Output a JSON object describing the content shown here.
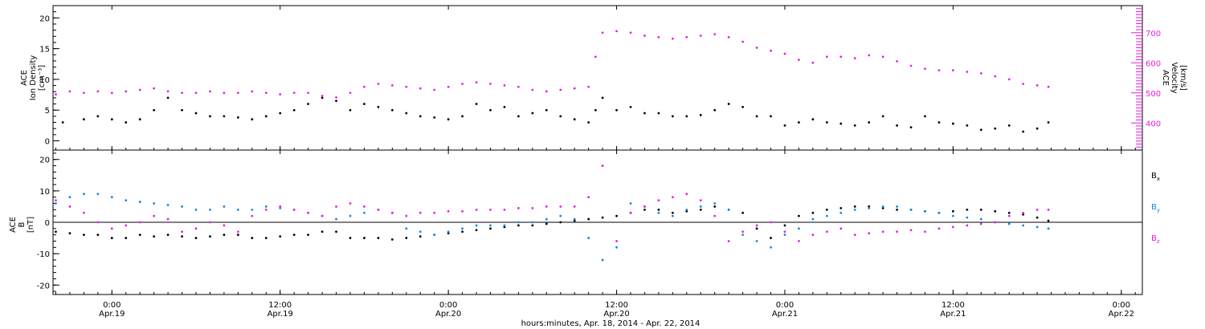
{
  "page": {
    "xlabel": "hours:minutes, Apr. 18, 2014 - Apr. 22, 2014",
    "xticks": [
      {
        "hour": 0,
        "time": "0:00",
        "date": "Apr.19"
      },
      {
        "hour": 12,
        "time": "12:00",
        "date": "Apr.19"
      },
      {
        "hour": 24,
        "time": "0:00",
        "date": "Apr.20"
      },
      {
        "hour": 36,
        "time": "12:00",
        "date": "Apr.20"
      },
      {
        "hour": 48,
        "time": "0:00",
        "date": "Apr.21"
      },
      {
        "hour": 60,
        "time": "12:00",
        "date": "Apr.21"
      },
      {
        "hour": 72,
        "time": "0:00",
        "date": "Apr.22"
      }
    ]
  },
  "top_panel": {
    "left_label_lines": [
      "ACE",
      "Ion Density",
      "[cm⁻³]"
    ],
    "right_label_lines": [
      "ACE",
      "Velocity",
      "[km/s]"
    ]
  },
  "bottom_panel": {
    "left_label_lines": [
      "ACE",
      "B",
      "[nT]"
    ],
    "legend": [
      {
        "label": "B",
        "sub": "x",
        "color": "#000000"
      },
      {
        "label": "B",
        "sub": "y",
        "color": "#1a86e0"
      },
      {
        "label": "B",
        "sub": "z",
        "color": "#e81ee0"
      }
    ]
  },
  "colors": {
    "density": "#000000",
    "velocity": "#e81ee0",
    "bx": "#000000",
    "by": "#1a86e0",
    "bz": "#e81ee0"
  },
  "chart_data": [
    {
      "type": "scatter",
      "x_unit": "hours since 0:00 Apr.19",
      "xlim": [
        -4.2,
        73.5
      ],
      "ylim": [
        -1.5,
        22
      ],
      "y2lim": [
        310,
        790
      ],
      "yticks": [
        0,
        5,
        10,
        15,
        20
      ],
      "y2ticks": [
        400,
        500,
        600,
        700
      ],
      "series": [
        {
          "key": "density",
          "axis": "left",
          "x": [
            -3.5,
            -2,
            -1,
            0,
            1,
            2,
            3,
            4,
            5,
            6,
            7,
            8,
            9,
            10,
            11,
            12,
            13,
            14,
            15,
            16,
            17,
            18,
            19,
            20,
            21,
            22,
            23,
            24,
            25,
            26,
            27,
            28,
            29,
            30,
            31,
            32,
            33,
            34,
            34.5,
            35,
            36,
            37,
            38,
            39,
            40,
            41,
            42,
            43,
            44,
            45,
            46,
            47,
            48,
            49,
            50,
            51,
            52,
            53,
            54,
            55,
            56,
            57,
            58,
            59,
            60,
            61,
            62,
            63,
            64,
            65,
            66,
            66.8
          ],
          "y": [
            3,
            3.5,
            4,
            3.5,
            3,
            3.5,
            5,
            7,
            5,
            4.5,
            4,
            4,
            3.8,
            3.5,
            4,
            4.5,
            5,
            6,
            7,
            6.5,
            5,
            6,
            5.5,
            5,
            4.5,
            4,
            3.8,
            3.5,
            4,
            6,
            5,
            5.5,
            4,
            4.5,
            5,
            4,
            3.5,
            3,
            5,
            7,
            5,
            5.5,
            4.5,
            4.5,
            4,
            4,
            4.2,
            5,
            6,
            5.5,
            4,
            4,
            2.5,
            3,
            3.5,
            3,
            2.8,
            2.5,
            3,
            4,
            2.5,
            2.2,
            4,
            3,
            2.8,
            2.5,
            1.8,
            2,
            2.5,
            1.5,
            2,
            3
          ]
        },
        {
          "key": "velocity",
          "axis": "right",
          "x": [
            -4,
            -3,
            -2,
            -1,
            0,
            1,
            2,
            3,
            4,
            5,
            6,
            7,
            8,
            9,
            10,
            11,
            12,
            13,
            14,
            15,
            16,
            17,
            18,
            19,
            20,
            21,
            22,
            23,
            24,
            25,
            26,
            27,
            28,
            29,
            30,
            31,
            32,
            33,
            34,
            34.5,
            35,
            36,
            37,
            38,
            39,
            40,
            41,
            42,
            43,
            44,
            45,
            46,
            47,
            48,
            49,
            50,
            51,
            52,
            53,
            54,
            55,
            56,
            57,
            58,
            59,
            60,
            61,
            62,
            63,
            64,
            65,
            66,
            66.8
          ],
          "y": [
            495,
            505,
            500,
            505,
            500,
            505,
            510,
            515,
            505,
            500,
            500,
            505,
            500,
            500,
            505,
            500,
            495,
            500,
            500,
            490,
            485,
            500,
            520,
            530,
            525,
            520,
            515,
            510,
            520,
            530,
            535,
            530,
            525,
            520,
            510,
            505,
            510,
            515,
            520,
            620,
            700,
            705,
            700,
            690,
            685,
            680,
            685,
            690,
            695,
            685,
            670,
            650,
            640,
            630,
            610,
            600,
            620,
            620,
            615,
            625,
            620,
            605,
            590,
            580,
            575,
            575,
            570,
            565,
            555,
            545,
            530,
            525,
            520
          ]
        }
      ]
    },
    {
      "type": "scatter",
      "x_unit": "hours since 0:00 Apr.19",
      "xlim": [
        -4.2,
        73.5
      ],
      "ylim": [
        -23,
        23
      ],
      "yticks": [
        -20,
        -10,
        0,
        10,
        20
      ],
      "series": [
        {
          "key": "bx",
          "name": "Bx",
          "x": [
            -4,
            -3,
            -2,
            -1,
            0,
            1,
            2,
            3,
            4,
            5,
            6,
            7,
            8,
            9,
            10,
            11,
            12,
            13,
            14,
            15,
            16,
            17,
            18,
            19,
            20,
            21,
            22,
            23,
            24,
            25,
            26,
            27,
            28,
            29,
            30,
            31,
            32,
            33,
            34,
            35,
            36,
            37,
            38,
            39,
            40,
            41,
            42,
            43,
            44,
            45,
            46,
            47,
            48,
            49,
            50,
            51,
            52,
            53,
            54,
            55,
            56,
            57,
            58,
            59,
            60,
            61,
            62,
            63,
            64,
            65,
            66,
            66.8
          ],
          "y": [
            -3,
            -3.5,
            -4,
            -4,
            -5,
            -5,
            -4,
            -4.5,
            -4,
            -4.5,
            -5,
            -4.5,
            -4,
            -4,
            -5,
            -5,
            -4.5,
            -4,
            -4,
            -3,
            -3,
            -5,
            -5,
            -5,
            -5.5,
            -5,
            -4.5,
            -4,
            -3.5,
            -3,
            -2.5,
            -2,
            -1.5,
            -1,
            -1,
            -0.5,
            0,
            0.5,
            1,
            1.5,
            2,
            3,
            4,
            4,
            3,
            3.5,
            4,
            5,
            4,
            3,
            -2,
            -5,
            -1,
            2,
            3,
            4,
            4.5,
            5,
            5,
            4.5,
            4,
            4,
            3.5,
            3,
            3.5,
            4,
            4,
            3.5,
            3,
            2.5,
            1.5,
            0.5
          ]
        },
        {
          "key": "by",
          "name": "By",
          "x": [
            -4,
            -3,
            -2,
            -1,
            0,
            1,
            2,
            3,
            4,
            5,
            6,
            7,
            8,
            9,
            10,
            11,
            12,
            13,
            14,
            15,
            16,
            17,
            18,
            19,
            20,
            21,
            22,
            23,
            24,
            25,
            26,
            27,
            28,
            29,
            30,
            31,
            32,
            33,
            34,
            35,
            36,
            37,
            38,
            39,
            40,
            41,
            42,
            43,
            44,
            45,
            46,
            47,
            48,
            49,
            50,
            51,
            52,
            53,
            54,
            55,
            56,
            57,
            58,
            59,
            60,
            61,
            62,
            63,
            64,
            65,
            66,
            66.8
          ],
          "y": [
            6,
            8,
            9,
            9,
            8,
            7,
            6.5,
            6,
            5.5,
            5,
            4,
            4,
            5,
            4,
            4,
            5,
            4.5,
            4,
            3,
            2,
            1,
            2,
            3,
            4,
            3,
            -2,
            -3,
            -4,
            -3,
            -2,
            -1,
            -1,
            -1,
            0,
            0,
            1,
            2,
            1,
            -5,
            -12,
            -8,
            6,
            5,
            3,
            2,
            4,
            5,
            6,
            4,
            -4,
            -6,
            -8,
            -4,
            -2,
            1,
            2,
            3,
            4,
            4.5,
            5,
            5,
            4,
            3.5,
            3,
            2,
            1.5,
            1,
            0,
            -0.5,
            -1,
            -1.5,
            -2
          ]
        },
        {
          "key": "bz",
          "name": "Bz",
          "x": [
            -4,
            -3,
            -2,
            -1,
            0,
            1,
            2,
            3,
            4,
            5,
            6,
            7,
            8,
            9,
            10,
            11,
            12,
            13,
            14,
            15,
            16,
            17,
            18,
            19,
            20,
            21,
            22,
            23,
            24,
            25,
            26,
            27,
            28,
            29,
            30,
            31,
            32,
            33,
            34,
            35,
            36,
            37,
            38,
            39,
            40,
            41,
            42,
            43,
            44,
            45,
            46,
            47,
            48,
            49,
            50,
            51,
            52,
            53,
            54,
            55,
            56,
            57,
            58,
            59,
            60,
            61,
            62,
            63,
            64,
            65,
            66,
            66.8
          ],
          "y": [
            7,
            5,
            3,
            0,
            -2,
            -1,
            0,
            2,
            1,
            -3,
            -2,
            0,
            -1,
            -3,
            2,
            4,
            5,
            4,
            3,
            2,
            5,
            6,
            5,
            4,
            3,
            2,
            3,
            3,
            3.5,
            3.5,
            4,
            4,
            4,
            4.5,
            4.5,
            5,
            5,
            5,
            8,
            18,
            -6,
            3,
            5,
            7,
            8,
            9,
            7,
            2,
            -6,
            -3,
            -1,
            0,
            -3,
            -6,
            -4,
            -3,
            -2,
            -4,
            -3.5,
            -3,
            -3,
            -2.5,
            -3,
            -2,
            -1.5,
            -1,
            -0.5,
            0,
            2,
            3,
            4,
            4
          ]
        }
      ]
    }
  ]
}
